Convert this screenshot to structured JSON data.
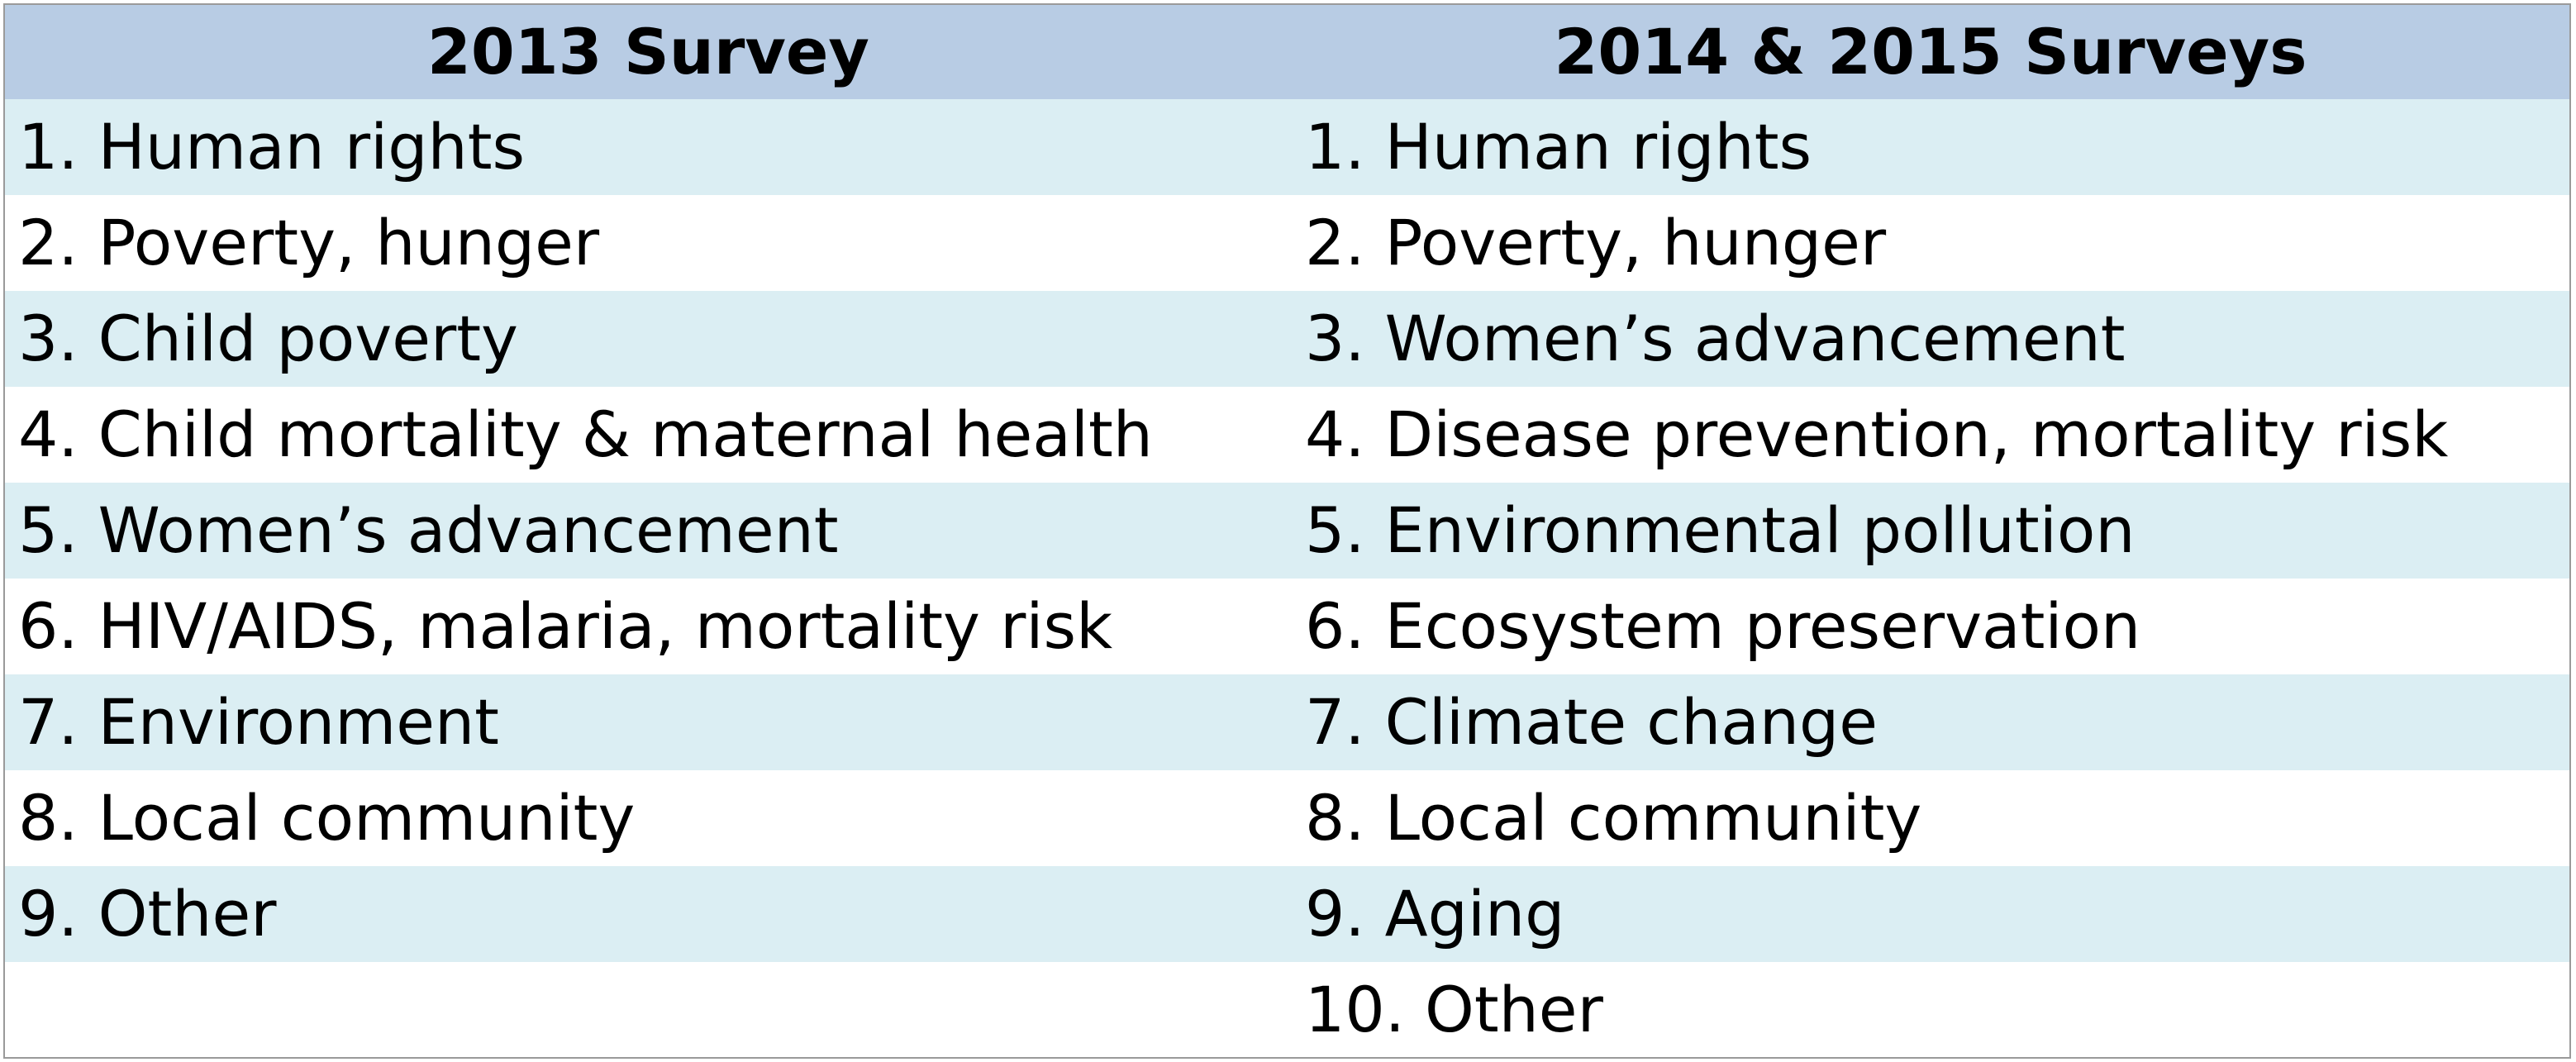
{
  "table": {
    "headers": [
      "2013 Survey",
      "2014 & 2015 Surveys"
    ],
    "rows": [
      [
        "1. Human rights",
        "1. Human rights"
      ],
      [
        "2. Poverty, hunger",
        "2. Poverty, hunger"
      ],
      [
        "3. Child poverty",
        "3. Women’s advancement"
      ],
      [
        "4. Child mortality & maternal health",
        "4. Disease prevention, mortality risk"
      ],
      [
        "5. Women’s advancement",
        "5. Environmental pollution"
      ],
      [
        "6. HIV/AIDS, malaria, mortality risk",
        "6. Ecosystem preservation"
      ],
      [
        "7. Environment",
        "7. Climate change"
      ],
      [
        "8. Local community",
        "8. Local community"
      ],
      [
        "9. Other",
        "9. Aging"
      ],
      [
        "",
        "10. Other"
      ]
    ],
    "colors": {
      "header_bg": "#b8cce4",
      "band_bg": "#dbeef3",
      "plain_bg": "#ffffff",
      "border": "#9a9a9a"
    }
  }
}
